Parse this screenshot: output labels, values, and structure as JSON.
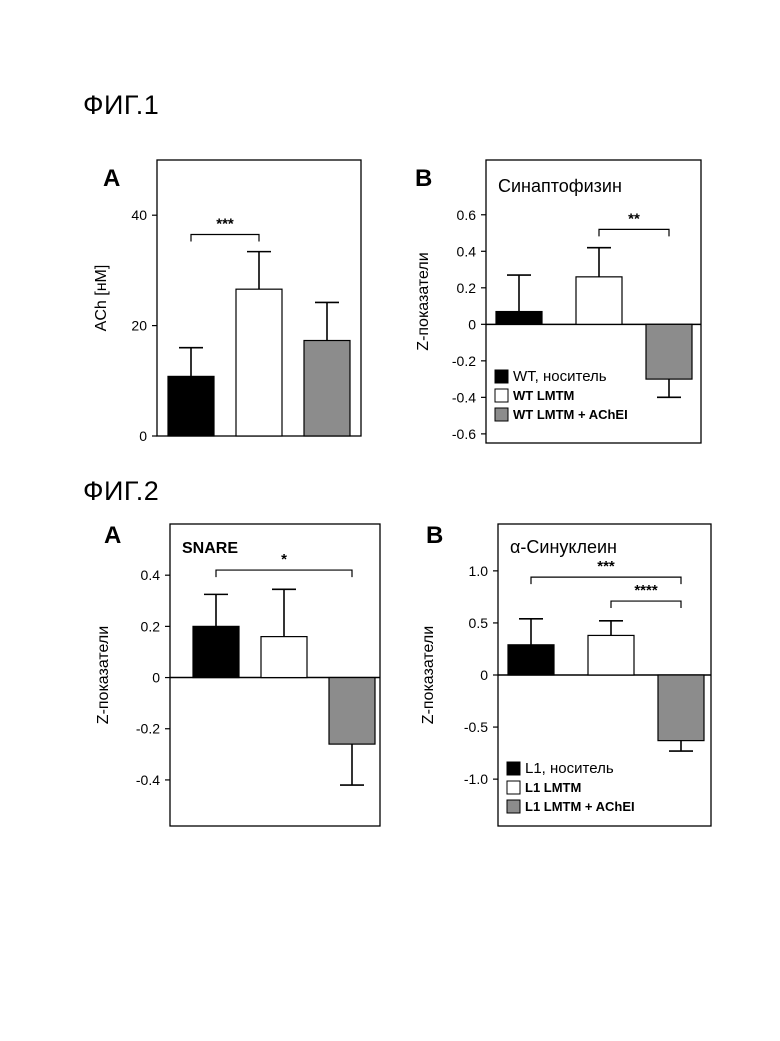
{
  "figures": [
    {
      "id": "fig1",
      "title": "ФИГ.1"
    },
    {
      "id": "fig2",
      "title": "ФИГ.2"
    }
  ],
  "colors": {
    "black": "#000000",
    "white": "#ffffff",
    "gray": "#8c8c8c"
  },
  "chart_data": [
    {
      "id": "fig1a",
      "panel": "A",
      "type": "bar",
      "title": "",
      "ylabel": "ACh [нМ]",
      "ylim": [
        0,
        50
      ],
      "yticks": [
        0,
        20,
        40
      ],
      "categories": [
        "black",
        "white",
        "gray"
      ],
      "values": [
        10.8,
        26.6,
        17.3
      ],
      "errors": [
        5.2,
        6.8,
        6.9
      ],
      "significance": [
        {
          "from": 0,
          "to": 1,
          "y": 36.5,
          "label": "***"
        }
      ],
      "legend": []
    },
    {
      "id": "fig1b",
      "panel": "B",
      "type": "bar",
      "title": "Синаптофизин",
      "ylabel": "Z-показатели",
      "ylim": [
        -0.65,
        0.9
      ],
      "yticks": [
        -0.6,
        -0.4,
        -0.2,
        0,
        0.2,
        0.4,
        0.6
      ],
      "categories": [
        "black",
        "white",
        "gray"
      ],
      "values": [
        0.07,
        0.26,
        -0.3
      ],
      "errors": [
        0.2,
        0.16,
        0.1
      ],
      "significance": [
        {
          "from": 1,
          "to": 2,
          "y": 0.52,
          "label": "**"
        }
      ],
      "legend": [
        "WT, носитель",
        "WT  LMTM",
        "WT  LMTM + AChEI"
      ]
    },
    {
      "id": "fig2a",
      "panel": "A",
      "type": "bar",
      "title": "SNARE",
      "ylabel": "Z-показатели",
      "ylim": [
        -0.58,
        0.6
      ],
      "yticks": [
        -0.4,
        -0.2,
        0,
        0.2,
        0.4
      ],
      "categories": [
        "black",
        "white",
        "gray"
      ],
      "values": [
        0.2,
        0.16,
        -0.26
      ],
      "errors": [
        0.125,
        0.185,
        0.16
      ],
      "significance": [
        {
          "from": 0,
          "to": 2,
          "y": 0.42,
          "label": "*"
        }
      ],
      "legend": []
    },
    {
      "id": "fig2b",
      "panel": "B",
      "type": "bar",
      "title": "α-Синуклеин",
      "ylabel": "Z-показатели",
      "ylim": [
        -1.45,
        1.45
      ],
      "yticks": [
        -1.0,
        -0.5,
        0,
        0.5,
        1.0
      ],
      "categories": [
        "black",
        "white",
        "gray"
      ],
      "values": [
        0.29,
        0.38,
        -0.63
      ],
      "errors": [
        0.25,
        0.14,
        0.1
      ],
      "significance": [
        {
          "from": 0,
          "to": 2,
          "y": 0.94,
          "label": "***"
        },
        {
          "from": 1,
          "to": 2,
          "y": 0.71,
          "label": "****"
        }
      ],
      "legend": [
        "L1, носитель",
        "L1  LMTM",
        "L1  LMTM + AChEI"
      ]
    }
  ]
}
